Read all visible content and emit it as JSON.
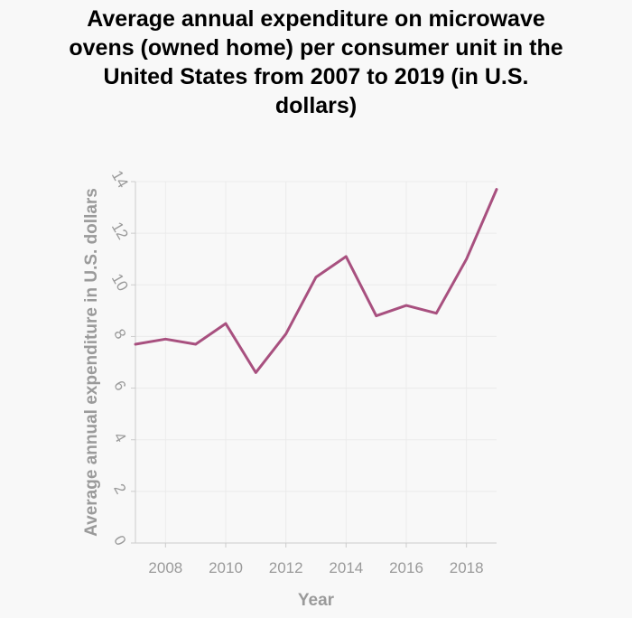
{
  "chart_data": {
    "type": "line",
    "title": "Average annual expenditure on microwave ovens (owned home) per consumer unit in the United States from 2007 to 2019 (in U.S. dollars)",
    "title_lines": [
      "Average annual expenditure on microwave",
      "ovens (owned home) per consumer unit in the",
      "United States from 2007 to 2019 (in U.S.",
      "dollars)"
    ],
    "xlabel": "Year",
    "ylabel": "Average annual expenditure in U.S. dollars",
    "xlim": [
      2007,
      2019
    ],
    "ylim": [
      0,
      14
    ],
    "x_ticks": [
      2008,
      2010,
      2012,
      2014,
      2016,
      2018
    ],
    "y_ticks": [
      0,
      2,
      4,
      6,
      8,
      10,
      12,
      14
    ],
    "grid": true,
    "series": [
      {
        "color": "#a8507f",
        "x": [
          2007,
          2008,
          2009,
          2010,
          2011,
          2012,
          2013,
          2014,
          2015,
          2016,
          2017,
          2018,
          2019
        ],
        "y": [
          7.7,
          7.9,
          7.7,
          8.5,
          6.6,
          8.1,
          10.3,
          11.1,
          8.8,
          9.2,
          8.9,
          11.0,
          13.7
        ]
      }
    ]
  }
}
